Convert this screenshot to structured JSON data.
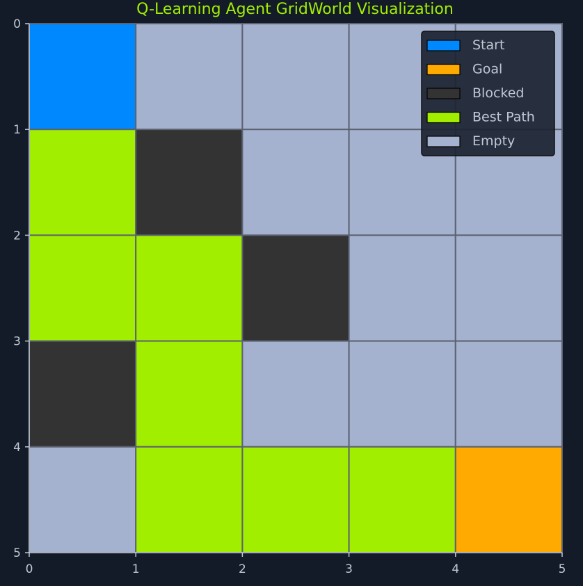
{
  "chart_data": {
    "type": "heatmap",
    "title": "Q-Learning Agent GridWorld Visualization",
    "xlabel": "",
    "ylabel": "",
    "xlim": [
      0,
      5
    ],
    "ylim": [
      0,
      5
    ],
    "y_inverted": true,
    "x_ticks": [
      "0",
      "1",
      "2",
      "3",
      "4",
      "5"
    ],
    "y_ticks": [
      "0",
      "1",
      "2",
      "3",
      "4",
      "5"
    ],
    "grid": [
      [
        "start",
        "empty",
        "empty",
        "empty",
        "empty"
      ],
      [
        "path",
        "blocked",
        "empty",
        "empty",
        "empty"
      ],
      [
        "path",
        "path",
        "blocked",
        "empty",
        "empty"
      ],
      [
        "blocked",
        "path",
        "empty",
        "empty",
        "empty"
      ],
      [
        "empty",
        "path",
        "path",
        "path",
        "goal"
      ]
    ],
    "legend_position": "top-right",
    "legend": [
      {
        "key": "start",
        "label": "Start",
        "color": "#0088ff"
      },
      {
        "key": "goal",
        "label": "Goal",
        "color": "#ffaa00"
      },
      {
        "key": "blocked",
        "label": "Blocked",
        "color": "#333333"
      },
      {
        "key": "path",
        "label": "Best Path",
        "color": "#a2ee00"
      },
      {
        "key": "empty",
        "label": "Empty",
        "color": "#a4b1cf"
      }
    ]
  },
  "theme": {
    "background": "#131b29",
    "title_color": "#a2ee00",
    "tick_color": "#c0c8d6",
    "axis_color": "#c0c8d6",
    "cell_border": "#5c6270",
    "legend_bg": "#1c2331",
    "legend_border": "#101010",
    "legend_text": "#c0c8d6"
  }
}
